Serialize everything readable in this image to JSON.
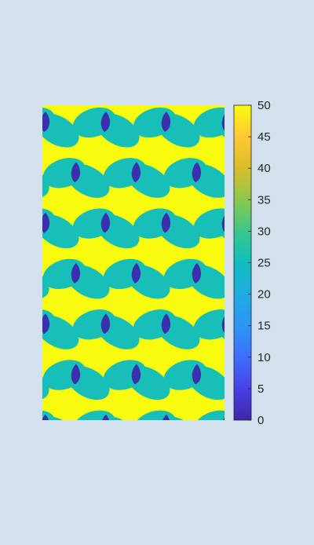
{
  "figure": {
    "background": "#d3e0ee"
  },
  "chart_data": {
    "type": "heatmap",
    "title": "",
    "xlabel": "",
    "ylabel": "",
    "colormap": "parula",
    "clim": [
      0,
      50
    ],
    "levels": [
      {
        "value": 50,
        "color": "#f9fb0e",
        "region": "background"
      },
      {
        "value": 27,
        "color": "#18bfb8",
        "region": "ellipses"
      },
      {
        "value": 2,
        "color": "#3a2fad",
        "region": "ellipse overlaps"
      }
    ],
    "pattern": {
      "rows": 7,
      "per_row": 4,
      "description": "Repeating rows of paired tilted ellipses (value ~27) over a background of 50, overlap regions ~2"
    },
    "colorbar": {
      "ticks": [
        "0",
        "5",
        "10",
        "15",
        "20",
        "25",
        "30",
        "35",
        "40",
        "45",
        "50"
      ],
      "stops": [
        {
          "pos": 0.0,
          "color": "#3e26a8"
        },
        {
          "pos": 0.1,
          "color": "#4741e6"
        },
        {
          "pos": 0.2,
          "color": "#3e6efd"
        },
        {
          "pos": 0.3,
          "color": "#2c96f4"
        },
        {
          "pos": 0.4,
          "color": "#1fabe0"
        },
        {
          "pos": 0.5,
          "color": "#10bebb"
        },
        {
          "pos": 0.6,
          "color": "#38c78c"
        },
        {
          "pos": 0.7,
          "color": "#8bc94d"
        },
        {
          "pos": 0.8,
          "color": "#dbbc2b"
        },
        {
          "pos": 0.9,
          "color": "#fec835"
        },
        {
          "pos": 1.0,
          "color": "#f9fb0e"
        }
      ]
    }
  }
}
